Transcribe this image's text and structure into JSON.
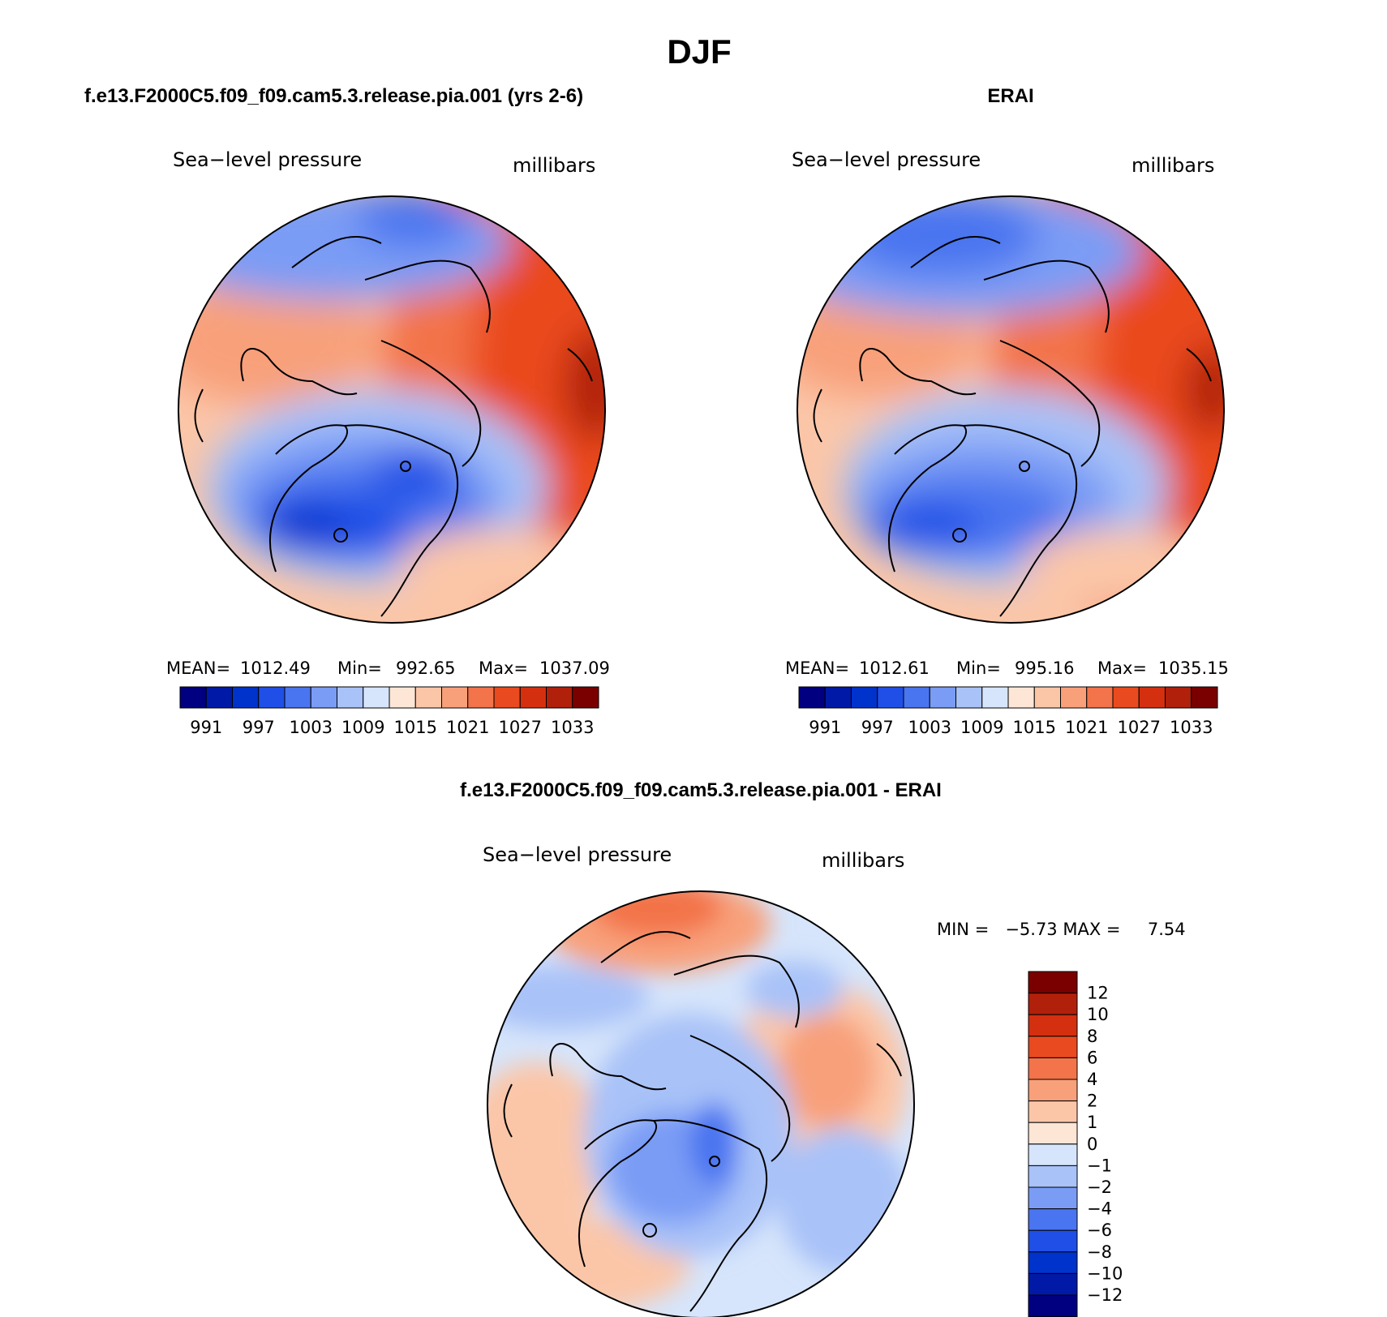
{
  "title": "DJF",
  "panels": [
    {
      "id": "model",
      "heading": "f.e13.F2000C5.f09_f09.cam5.3.release.pia.001 (yrs 2-6)",
      "left_label": "Sea−level pressure",
      "right_label": "millibars",
      "stats": {
        "mean_label": "MEAN=",
        "mean": "1012.49",
        "min_label": "Min=",
        "min": "992.65",
        "max_label": "Max=",
        "max": "1037.09"
      },
      "field": {
        "atlantic_low_strength": 1.0,
        "siberian_high_strength": 1.0,
        "aleutian_low_strength": 0.75
      }
    },
    {
      "id": "obs",
      "heading": "ERAI",
      "left_label": "Sea−level pressure",
      "right_label": "millibars",
      "stats": {
        "mean_label": "MEAN=",
        "mean": "1012.61",
        "min_label": "Min=",
        "min": "995.16",
        "max_label": "Max=",
        "max": "1035.15"
      },
      "field": {
        "atlantic_low_strength": 0.8,
        "siberian_high_strength": 0.92,
        "aleutian_low_strength": 1.0
      }
    }
  ],
  "abs_colorbar": {
    "colors": [
      "#000080",
      "#0019a6",
      "#0033cc",
      "#1f4fe6",
      "#4a75f0",
      "#7a9cf5",
      "#a9c2f8",
      "#d6e5fb",
      "#fde6d6",
      "#fbc6a8",
      "#f8a07a",
      "#f3734a",
      "#ea4a1f",
      "#d43010",
      "#b0200a",
      "#7a0000"
    ],
    "labels": [
      "991",
      "997",
      "1003",
      "1009",
      "1015",
      "1021",
      "1027",
      "1033"
    ]
  },
  "diff": {
    "heading": "f.e13.F2000C5.f09_f09.cam5.3.release.pia.001 - ERAI",
    "left_label": "Sea−level pressure",
    "right_label": "millibars",
    "minmax_text": "MIN =   −5.73 MAX =     7.54",
    "colorbar": {
      "colors": [
        "#7a0000",
        "#b0200a",
        "#d43010",
        "#ea4a1f",
        "#f3734a",
        "#f8a07a",
        "#fbc6a8",
        "#fde6d6",
        "#d6e5fb",
        "#a9c2f8",
        "#7a9cf5",
        "#4a75f0",
        "#1f4fe6",
        "#0033cc",
        "#0019a6",
        "#000080"
      ],
      "labels": [
        "12",
        "10",
        "8",
        "6",
        "4",
        "2",
        "1",
        "0",
        "−1",
        "−2",
        "−4",
        "−6",
        "−8",
        "−10",
        "−12"
      ]
    }
  }
}
